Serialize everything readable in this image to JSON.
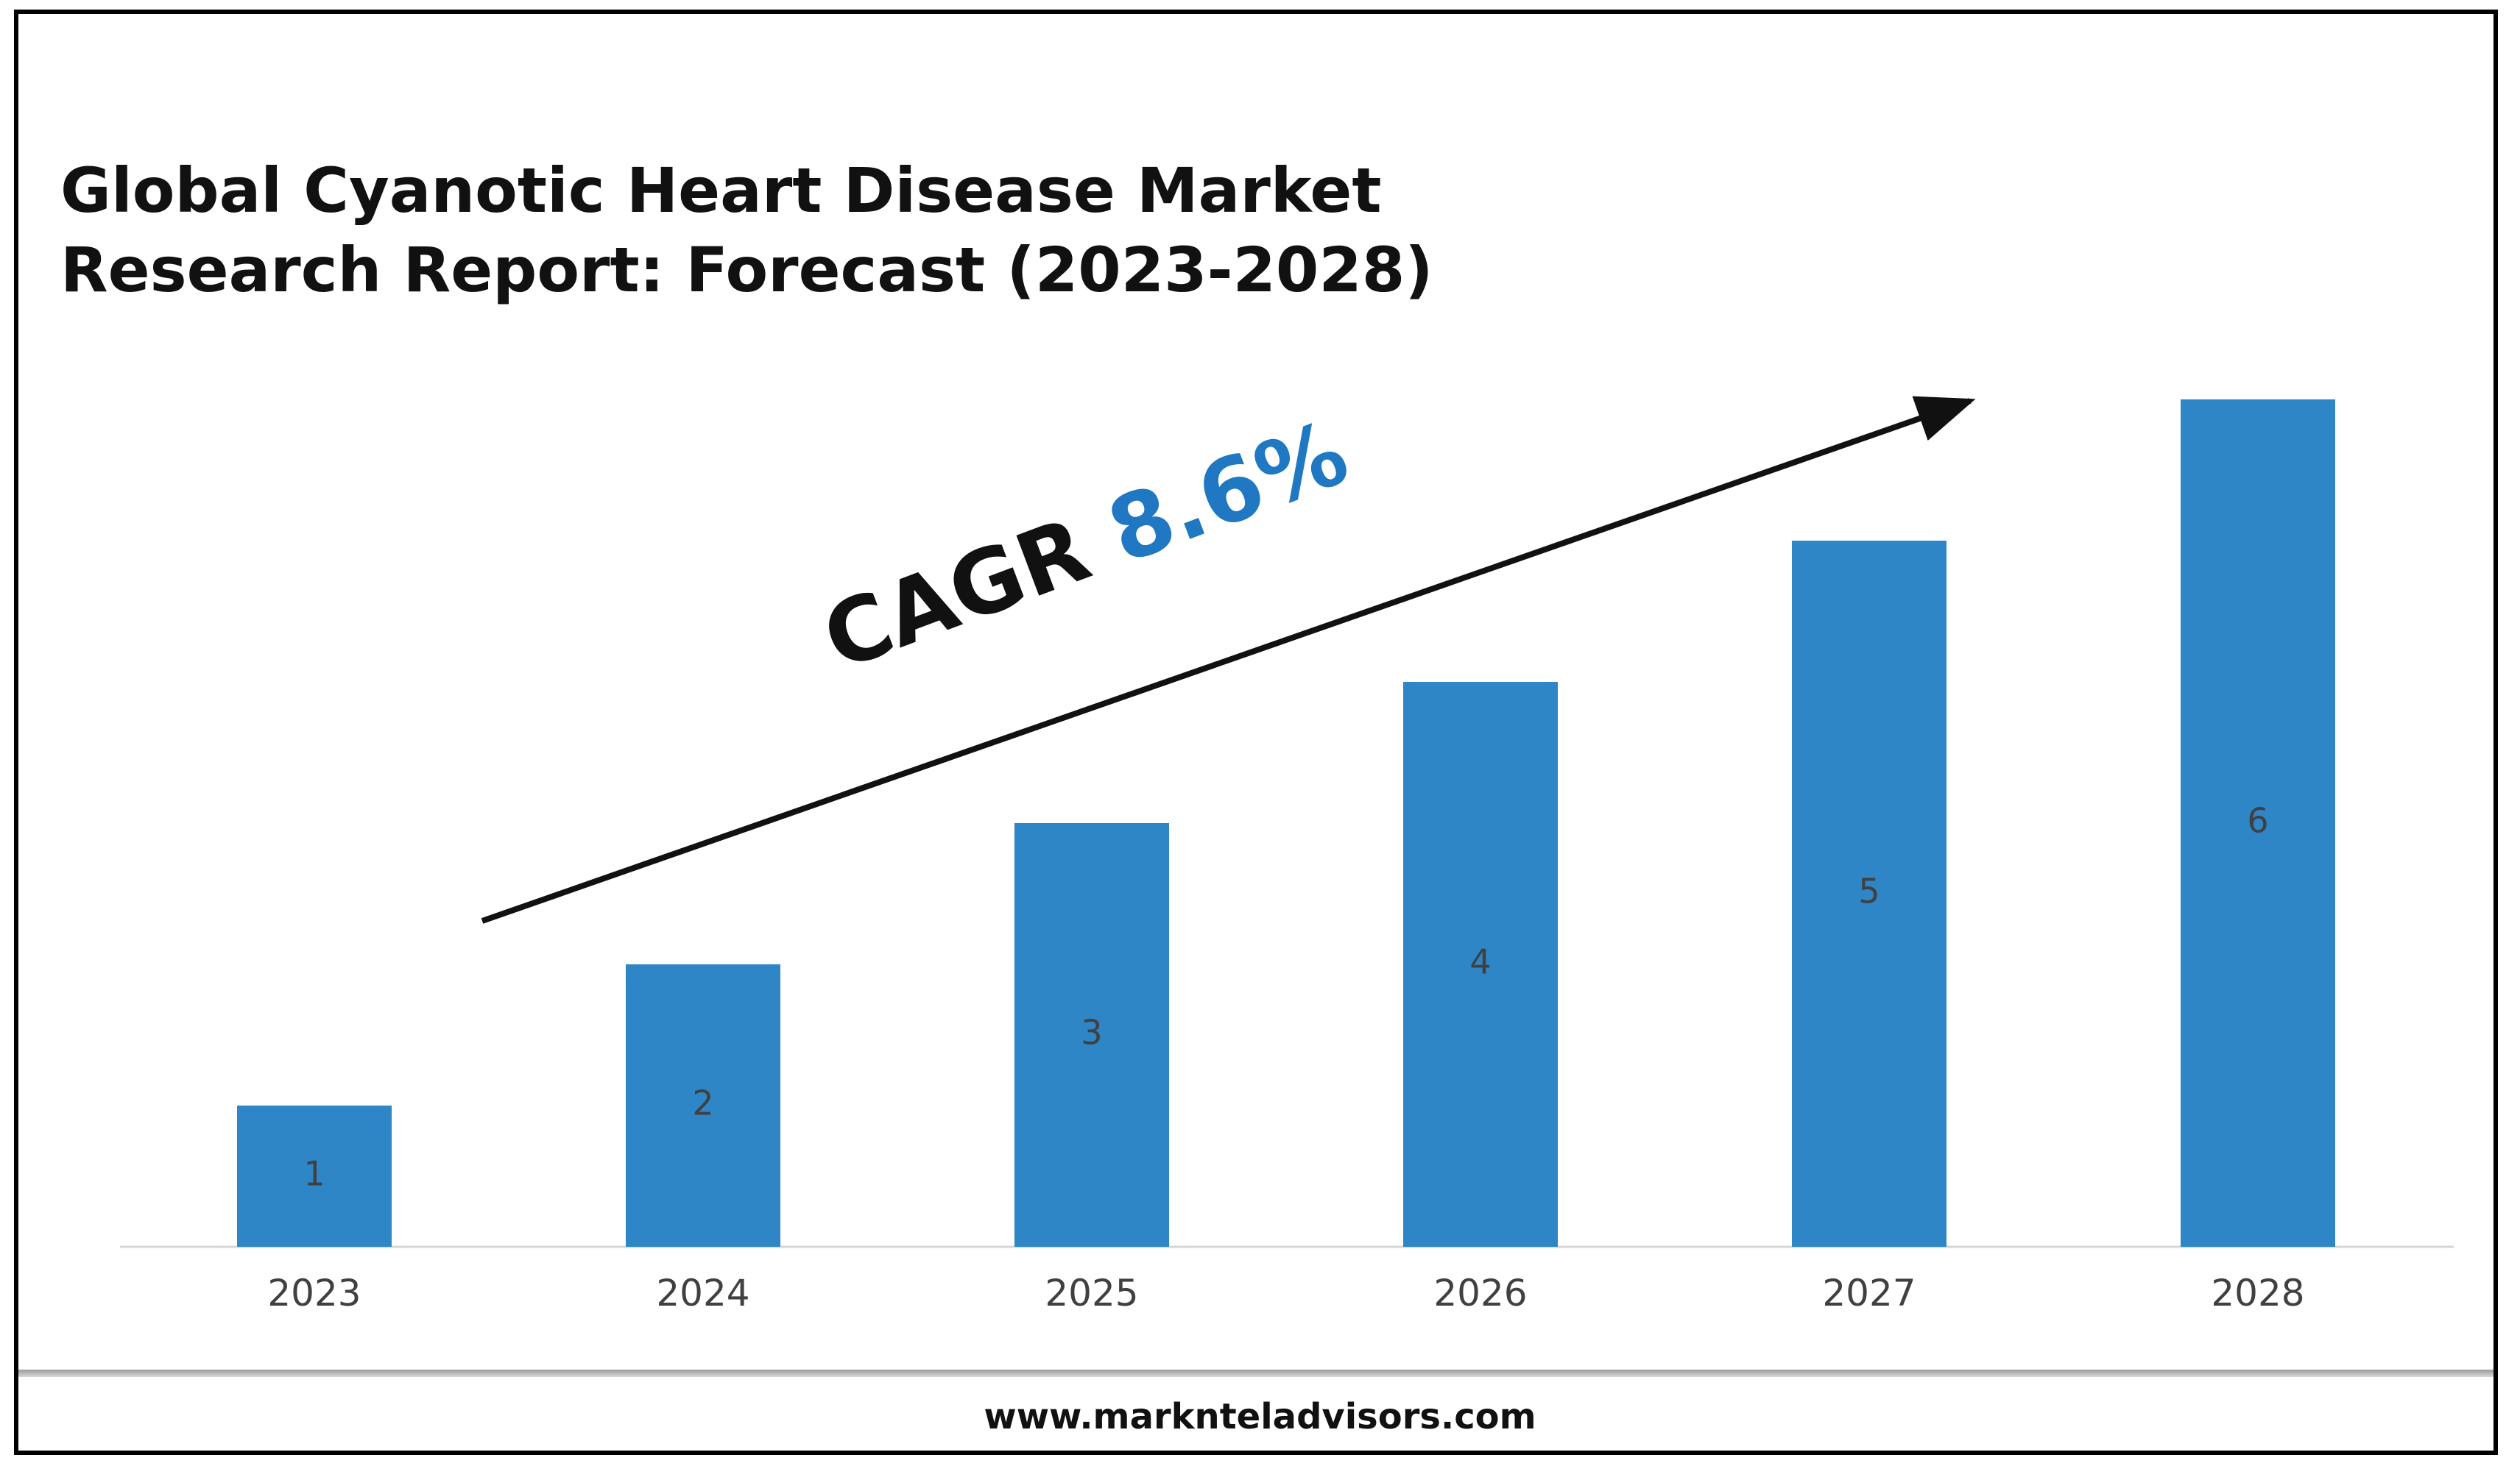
{
  "title_lines": [
    "Global Cyanotic Heart Disease Market",
    "Research Report: Forecast (2023-2028)"
  ],
  "cagr": {
    "label": "CAGR",
    "value": "8.6%"
  },
  "footer": {
    "website": "www.marknteladvisors.com"
  },
  "colors": {
    "bar": "#2e86c7",
    "cagr_value": "#1f78c1",
    "frame": "#000000"
  },
  "chart_data": {
    "type": "bar",
    "title": "Global Cyanotic Heart Disease Market Research Report: Forecast (2023-2028)",
    "categories": [
      "2023",
      "2024",
      "2025",
      "2026",
      "2027",
      "2028"
    ],
    "values": [
      1,
      2,
      3,
      4,
      5,
      6
    ],
    "data_labels": [
      "1",
      "2",
      "3",
      "4",
      "5",
      "6"
    ],
    "xlabel": "",
    "ylabel": "",
    "ylim": [
      0,
      6
    ],
    "grid": false,
    "legend": "none",
    "annotations": [
      "CAGR 8.6%"
    ]
  }
}
